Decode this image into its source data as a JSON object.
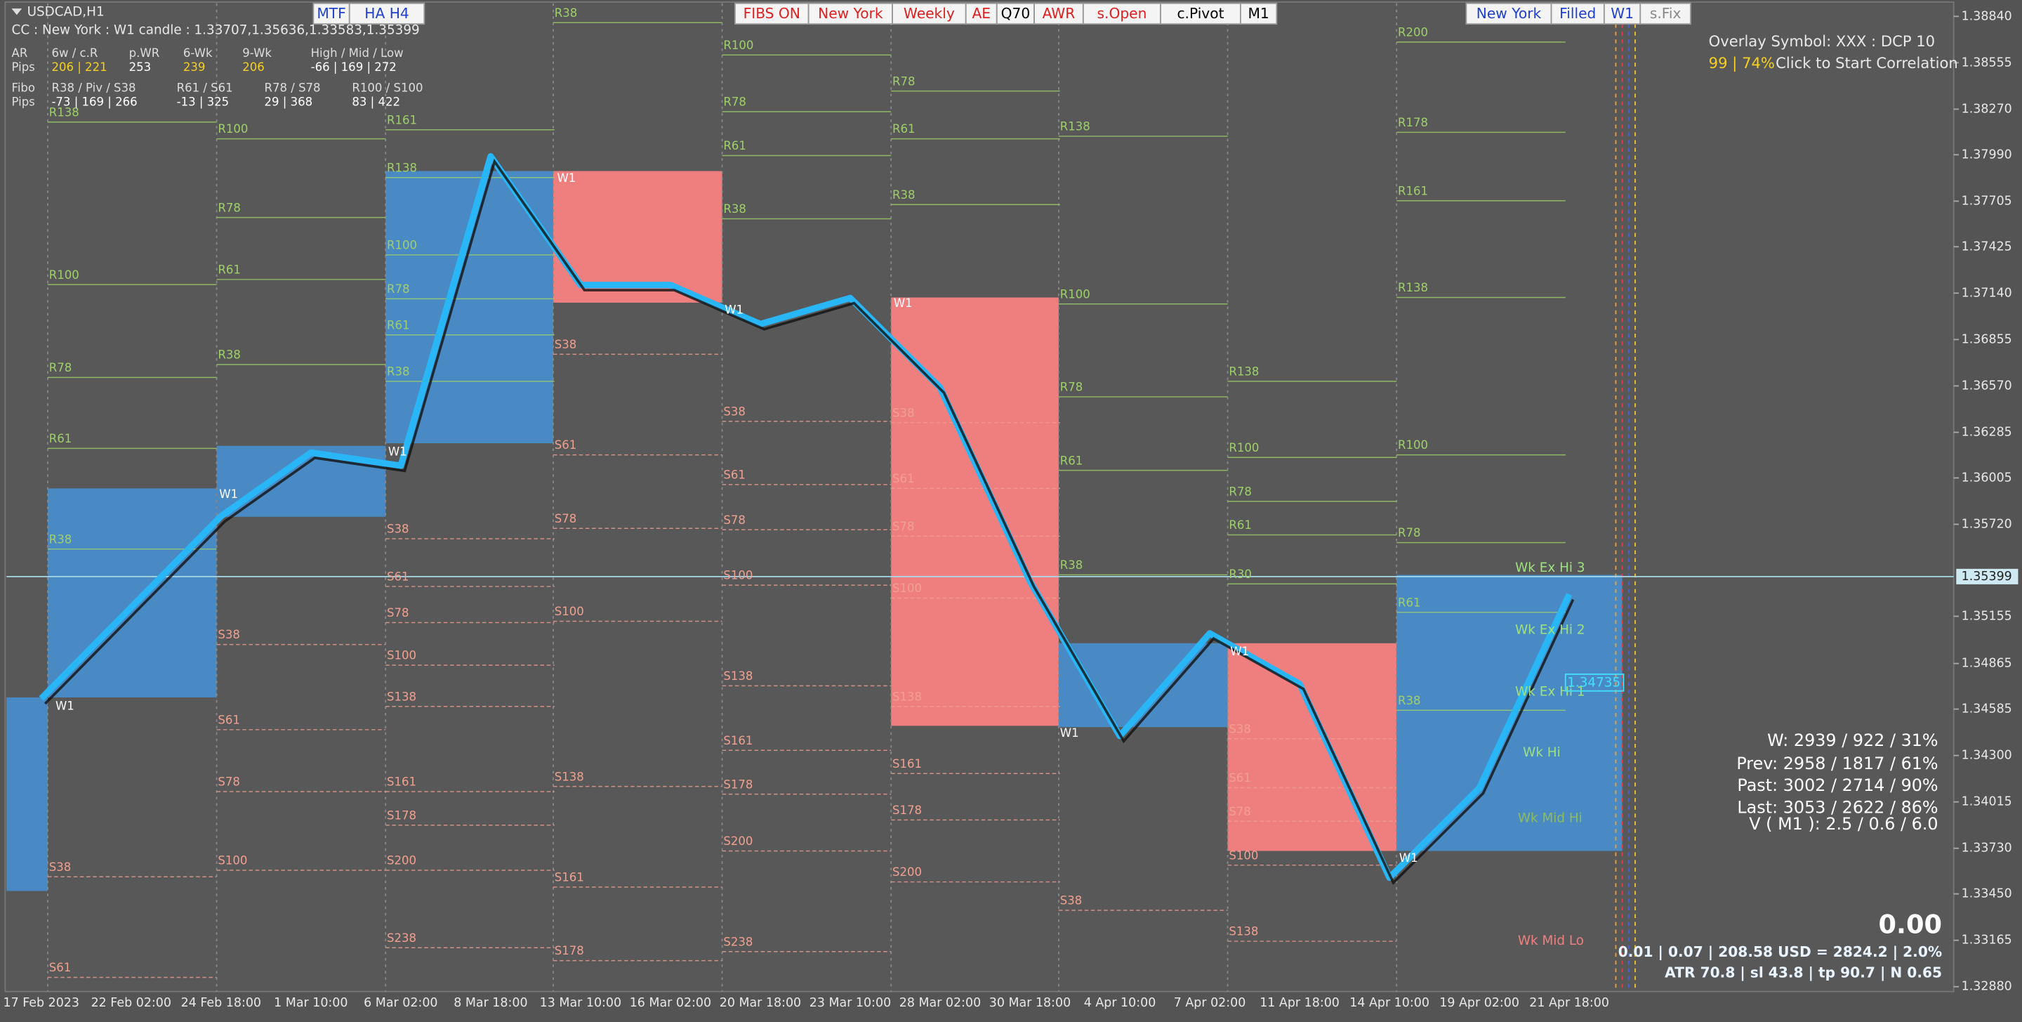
{
  "chart_data": {
    "type": "line",
    "title": "USDCAD,H1",
    "x": [
      "17 Feb 2023",
      "22 Feb 02:00",
      "24 Feb 18:00",
      "1 Mar 10:00",
      "6 Mar 02:00",
      "8 Mar 18:00",
      "13 Mar 10:00",
      "16 Mar 02:00",
      "20 Mar 18:00",
      "23 Mar 10:00",
      "28 Mar 02:00",
      "30 Mar 18:00",
      "4 Apr 10:00",
      "7 Apr 02:00",
      "11 Apr 18:00",
      "14 Apr 10:00",
      "19 Apr 02:00",
      "21 Apr 18:00"
    ],
    "series": [
      {
        "color": "#29b6f6",
        "values": [
          1.3465,
          1.3521,
          1.3577,
          1.3616,
          1.3608,
          1.3798,
          1.3719,
          1.3719,
          1.3695,
          1.3711,
          1.3656,
          1.3537,
          1.3442,
          1.3505,
          1.3474,
          1.3355,
          1.341,
          1.3529
        ]
      }
    ],
    "ylim": [
      1.3285,
      1.3892
    ],
    "yticks": [
      {
        "value": 1.3884,
        "label": "1.38840"
      },
      {
        "value": 1.38555,
        "label": "1.38555"
      },
      {
        "value": 1.3827,
        "label": "1.38270"
      },
      {
        "value": 1.3799,
        "label": "1.37990"
      },
      {
        "value": 1.37705,
        "label": "1.37705"
      },
      {
        "value": 1.37425,
        "label": "1.37425"
      },
      {
        "value": 1.3714,
        "label": "1.37140"
      },
      {
        "value": 1.36855,
        "label": "1.36855"
      },
      {
        "value": 1.3657,
        "label": "1.36570"
      },
      {
        "value": 1.36285,
        "label": "1.36285"
      },
      {
        "value": 1.36005,
        "label": "1.36005"
      },
      {
        "value": 1.3572,
        "label": "1.35720"
      },
      {
        "value": 1.35155,
        "label": "1.35155"
      },
      {
        "value": 1.34865,
        "label": "1.34865"
      },
      {
        "value": 1.34585,
        "label": "1.34585"
      },
      {
        "value": 1.343,
        "label": "1.34300"
      },
      {
        "value": 1.34015,
        "label": "1.34015"
      },
      {
        "value": 1.3373,
        "label": "1.33730"
      },
      {
        "value": 1.3345,
        "label": "1.33450"
      },
      {
        "value": 1.33165,
        "label": "1.33165"
      },
      {
        "value": 1.3288,
        "label": "1.32880"
      }
    ],
    "current_price": {
      "value": 1.35399,
      "label": "1.35399"
    }
  },
  "info": {
    "candle": "CC : New York : W1 candle : 1.33707,1.35636,1.33583,1.35399",
    "rows": [
      [
        "AR",
        "6w / c.R",
        "p.WR",
        "6-Wk",
        "9-Wk",
        "High / Mid / Low"
      ],
      [
        "Pips",
        "206 | 221",
        "253",
        "239",
        "206",
        "-66 | 169 | 272"
      ],
      [
        "Fibo",
        "R38 / Piv / S38",
        "R61 / S61",
        "R78 / S78",
        "R100 / S100"
      ],
      [
        "Pips",
        "-73 | 169 | 266",
        "-13 | 325",
        "29 | 368",
        "83 | 422"
      ]
    ]
  },
  "toolbar": [
    "MTF",
    "HA H4",
    "FIBS ON",
    "New York",
    "Weekly",
    "AE",
    "Q70",
    "AWR",
    "s.Open",
    "c.Pivot",
    "M1",
    "New York",
    "Filled",
    "W1",
    "s.Fix"
  ],
  "overlay": {
    "line1": "Overlay Symbol: XXX : DCP 10",
    "ratio": "99 | 74%",
    "action": "Click to Start Correlation"
  },
  "stats": [
    "W: 2939 / 922 / 31%",
    "Prev: 2958 / 1817 / 61%",
    "Past: 3002 / 2714 / 90%",
    "Last: 3053 / 2622 / 86%",
    "V ( M1 ): 2.5 / 0.6 / 6.0"
  ],
  "pnl": "0.00",
  "risk": [
    "0.01  |  0.07  |  208.58 USD = 2824.2  |  2.0%",
    "ATR 70.8  | sl 43.8  |  tp 90.7  |  N 0.65"
  ],
  "week_labels": [
    "Wk Ex Hi 3",
    "Wk Ex Hi 2",
    "Wk Ex Hi 1",
    "Wk Hi",
    "Wk Mid Hi",
    "Wk Mid Lo"
  ],
  "target_price": "1.34735",
  "candle_marks": [
    "W1",
    "W1",
    "W1",
    "W1",
    "W1",
    "W1",
    "W1",
    "W1",
    "W1"
  ],
  "level_labels": [
    "R138",
    "R100",
    "R78",
    "R61",
    "R38",
    "S38",
    "S61",
    "R100",
    "R78",
    "R61",
    "R38",
    "S38",
    "S61",
    "S78",
    "S100",
    "R161",
    "R138",
    "R100",
    "R78",
    "R61",
    "R38",
    "S38",
    "S61",
    "S78",
    "S100",
    "S138",
    "S161",
    "S178",
    "S200",
    "S238",
    "R38",
    "S38",
    "S61",
    "S78",
    "S100",
    "S138",
    "S161",
    "S178",
    "R100",
    "R78",
    "R61",
    "R38",
    "S38",
    "S61",
    "S78",
    "S100",
    "S138",
    "S161",
    "S178",
    "S200",
    "S238",
    "R78",
    "R61",
    "R38",
    "S38",
    "S61",
    "S78",
    "S100",
    "S138",
    "S161",
    "S178",
    "S200",
    "R138",
    "R100",
    "R78",
    "R61",
    "R38",
    "S38",
    "R138",
    "R100",
    "R78",
    "R61",
    "R30",
    "S38",
    "S61",
    "S78",
    "S100",
    "S138",
    "R200",
    "R178",
    "R161",
    "R138",
    "R100",
    "R78",
    "R61",
    "R38"
  ]
}
